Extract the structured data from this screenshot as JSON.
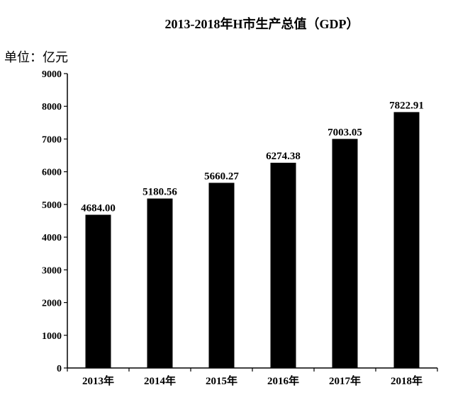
{
  "chart_data": {
    "type": "bar",
    "title": "2013-2018年H市生产总值（GDP）",
    "unit_label": "单位：亿元",
    "categories": [
      "2013年",
      "2014年",
      "2015年",
      "2016年",
      "2017年",
      "2018年"
    ],
    "values": [
      4684.0,
      5180.56,
      5660.27,
      6274.38,
      7003.05,
      7822.91
    ],
    "data_labels": [
      "4684.00",
      "5180.56",
      "5660.27",
      "6274.38",
      "7003.05",
      "7822.91"
    ],
    "ylim": [
      0,
      9000
    ],
    "yticks": [
      0,
      1000,
      2000,
      3000,
      4000,
      5000,
      6000,
      7000,
      8000,
      9000
    ],
    "grid": false,
    "bar_color": "#000000"
  }
}
